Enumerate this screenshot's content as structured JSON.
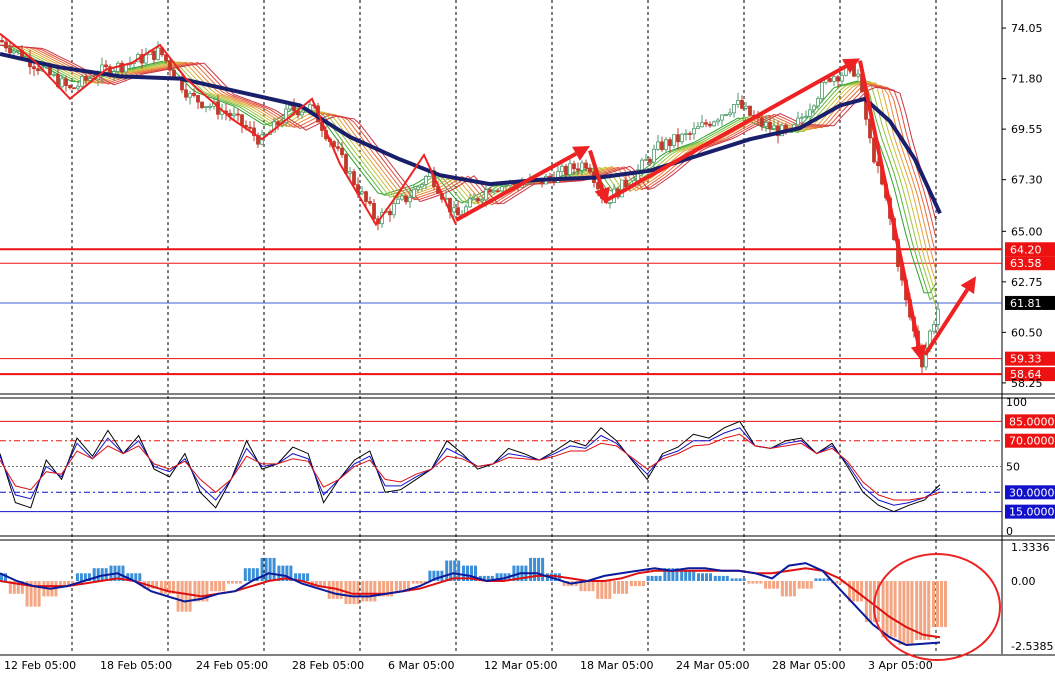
{
  "colors": {
    "background": "#ffffff",
    "grid": "#000000",
    "candle_up": "#4e9a6c",
    "candle_down": "#c0392b",
    "slow_ma": "#1a1f6b",
    "arrow": "#ee2222",
    "level": "#ee1111",
    "price_line": "#3c5fd6",
    "stoch_main": "#000000",
    "stoch_signal_1": "#1111cc",
    "stoch_signal_2": "#dd1111",
    "macd_pos": "#3a8fd8",
    "macd_neg": "#f4a582",
    "macd_line": "#0a1a9c",
    "signal_line": "#dd1111",
    "circle": "#ee2222"
  },
  "chart_data": [
    {
      "type": "candlestick",
      "panel": "price",
      "x_tick_labels": [
        "12 Feb 05:00",
        "18 Feb 05:00",
        "24 Feb 05:00",
        "28 Feb 05:00",
        "6 Mar 05:00",
        "12 Mar 05:00",
        "18 Mar 05:00",
        "24 Mar 05:00",
        "28 Mar 05:00",
        "3 Apr 05:00"
      ],
      "y_ticks": [
        "74.05",
        "71.80",
        "69.55",
        "67.30",
        "65.00",
        "62.75",
        "60.50",
        "58.25"
      ],
      "ylim": [
        57.8,
        75.3
      ],
      "current_price": "61.81",
      "levels": [
        {
          "label": "64.20",
          "value": 64.2
        },
        {
          "label": "63.58",
          "value": 63.58
        },
        {
          "label": "59.33",
          "value": 59.33
        },
        {
          "label": "58.64",
          "value": 58.64
        }
      ],
      "price_path": [
        [
          0,
          73.5
        ],
        [
          30,
          72.6
        ],
        [
          70,
          71.3
        ],
        [
          100,
          72.1
        ],
        [
          130,
          72.5
        ],
        [
          160,
          73.0
        ],
        [
          190,
          71.0
        ],
        [
          230,
          70.2
        ],
        [
          262,
          69.0
        ],
        [
          290,
          70.4
        ],
        [
          312,
          70.5
        ],
        [
          340,
          68.3
        ],
        [
          376,
          65.5
        ],
        [
          410,
          66.6
        ],
        [
          430,
          67.6
        ],
        [
          456,
          65.6
        ],
        [
          490,
          67.0
        ],
        [
          540,
          67.2
        ],
        [
          588,
          68.1
        ],
        [
          605,
          66.3
        ],
        [
          630,
          67.3
        ],
        [
          660,
          68.8
        ],
        [
          690,
          69.3
        ],
        [
          736,
          70.7
        ],
        [
          760,
          69.8
        ],
        [
          790,
          69.3
        ],
        [
          808,
          70.5
        ],
        [
          830,
          71.9
        ],
        [
          857,
          72.2
        ],
        [
          870,
          69.0
        ],
        [
          888,
          66.0
        ],
        [
          905,
          62.0
        ],
        [
          922,
          59.2
        ],
        [
          932,
          60.8
        ],
        [
          940,
          61.8
        ]
      ],
      "slow_ma_path": [
        [
          0,
          72.9
        ],
        [
          60,
          72.3
        ],
        [
          120,
          71.9
        ],
        [
          180,
          71.8
        ],
        [
          240,
          71.2
        ],
        [
          300,
          70.6
        ],
        [
          350,
          69.2
        ],
        [
          400,
          68.2
        ],
        [
          440,
          67.5
        ],
        [
          490,
          67.1
        ],
        [
          540,
          67.3
        ],
        [
          600,
          67.4
        ],
        [
          650,
          67.7
        ],
        [
          700,
          68.4
        ],
        [
          750,
          69.1
        ],
        [
          800,
          69.6
        ],
        [
          840,
          70.6
        ],
        [
          865,
          70.9
        ],
        [
          890,
          69.9
        ],
        [
          915,
          68.2
        ],
        [
          940,
          65.8
        ]
      ],
      "zigzag": [
        [
          0,
          73.8
        ],
        [
          34,
          72.6
        ],
        [
          70,
          70.9
        ],
        [
          106,
          72.2
        ],
        [
          132,
          72.5
        ],
        [
          160,
          73.3
        ],
        [
          186,
          71.8
        ],
        [
          232,
          70.0
        ],
        [
          262,
          69.1
        ],
        [
          312,
          70.9
        ],
        [
          340,
          68.0
        ],
        [
          376,
          65.3
        ],
        [
          400,
          66.8
        ],
        [
          424,
          68.4
        ],
        [
          456,
          65.3
        ]
      ],
      "arrows": [
        {
          "from": [
            456,
            65.5
          ],
          "to": [
            590,
            68.8
          ]
        },
        {
          "from": [
            590,
            68.6
          ],
          "to": [
            607,
            66.2
          ]
        },
        {
          "from": [
            607,
            66.4
          ],
          "to": [
            860,
            72.7
          ]
        },
        {
          "from": [
            860,
            72.6
          ],
          "to": [
            922,
            59.2
          ]
        },
        {
          "from": [
            925,
            59.5
          ],
          "to": [
            976,
            63.0
          ]
        }
      ]
    },
    {
      "type": "line",
      "panel": "stochastic",
      "y_ticks": [
        "100",
        "50",
        "0"
      ],
      "ylim": [
        0,
        100
      ],
      "levels": [
        {
          "label": "85.0000",
          "value": 85
        },
        {
          "label": "70.0000",
          "value": 70
        },
        {
          "label": "30.0000",
          "value": 30
        },
        {
          "label": "15.0000",
          "value": 15
        }
      ],
      "series": [
        {
          "values": [
            60,
            22,
            18,
            55,
            40,
            72,
            58,
            78,
            60,
            74,
            48,
            42,
            60,
            30,
            18,
            40,
            70,
            48,
            52,
            65,
            60,
            22,
            40,
            55,
            62,
            30,
            32,
            40,
            48,
            70,
            60,
            48,
            52,
            64,
            60,
            55,
            62,
            70,
            66,
            80,
            70,
            55,
            40,
            60,
            65,
            75,
            72,
            80,
            85,
            66,
            64,
            70,
            72,
            60,
            68,
            50,
            30,
            20,
            15,
            20,
            24,
            36
          ]
        },
        {
          "values": [
            58,
            28,
            25,
            50,
            42,
            68,
            56,
            72,
            60,
            70,
            50,
            46,
            56,
            35,
            24,
            40,
            64,
            50,
            52,
            60,
            56,
            28,
            40,
            52,
            58,
            35,
            35,
            42,
            48,
            64,
            58,
            50,
            52,
            60,
            58,
            55,
            60,
            66,
            64,
            74,
            68,
            56,
            44,
            58,
            62,
            70,
            70,
            76,
            80,
            66,
            64,
            68,
            70,
            60,
            66,
            52,
            34,
            24,
            20,
            22,
            26,
            33
          ]
        },
        {
          "values": [
            55,
            35,
            32,
            46,
            44,
            62,
            56,
            66,
            60,
            66,
            52,
            48,
            54,
            40,
            30,
            40,
            58,
            52,
            52,
            56,
            54,
            34,
            40,
            50,
            55,
            40,
            38,
            44,
            48,
            58,
            56,
            50,
            52,
            57,
            56,
            55,
            58,
            62,
            62,
            68,
            66,
            57,
            48,
            56,
            60,
            66,
            67,
            72,
            75,
            66,
            64,
            66,
            68,
            60,
            64,
            54,
            38,
            28,
            24,
            24,
            26,
            30
          ]
        }
      ]
    },
    {
      "type": "bar",
      "panel": "macd",
      "y_ticks": [
        "1.3336",
        "0.00",
        "-2.5385"
      ],
      "ylim": [
        -2.85,
        1.6
      ],
      "histogram": [
        0.3,
        -0.5,
        -1.0,
        -0.6,
        -0.2,
        0.3,
        0.5,
        0.6,
        0.3,
        -0.3,
        -0.5,
        -1.2,
        -0.8,
        -0.4,
        -0.1,
        0.5,
        0.9,
        0.6,
        0.3,
        -0.2,
        -0.7,
        -0.9,
        -0.8,
        -0.6,
        -0.4,
        -0.1,
        0.4,
        0.8,
        0.6,
        0.2,
        0.3,
        0.6,
        0.9,
        0.3,
        -0.2,
        -0.4,
        -0.7,
        -0.5,
        -0.2,
        0.2,
        0.5,
        0.4,
        0.3,
        0.2,
        0.1,
        -0.1,
        -0.3,
        -0.6,
        -0.3,
        0.1,
        -0.1,
        -0.8,
        -1.6,
        -2.2,
        -2.5,
        -2.3,
        -1.8
      ],
      "macd_line": [
        0.3,
        0.0,
        -0.2,
        -0.3,
        -0.2,
        0.0,
        0.2,
        0.3,
        0.0,
        -0.4,
        -0.6,
        -0.8,
        -0.7,
        -0.5,
        -0.4,
        0.0,
        0.3,
        0.2,
        -0.1,
        -0.3,
        -0.5,
        -0.6,
        -0.6,
        -0.5,
        -0.4,
        -0.2,
        0.1,
        0.3,
        0.2,
        0.0,
        0.1,
        0.3,
        0.3,
        0.1,
        -0.1,
        0.0,
        0.2,
        0.3,
        0.4,
        0.5,
        0.4,
        0.5,
        0.5,
        0.4,
        0.4,
        0.3,
        0.1,
        0.6,
        0.7,
        0.4,
        -0.3,
        -1.0,
        -1.7,
        -2.2,
        -2.5,
        -2.45,
        -2.4
      ],
      "signal_line": [
        0.0,
        -0.1,
        -0.2,
        -0.2,
        -0.2,
        -0.1,
        0.0,
        0.1,
        0.0,
        -0.2,
        -0.4,
        -0.5,
        -0.6,
        -0.5,
        -0.4,
        -0.2,
        0.0,
        0.1,
        0.0,
        -0.2,
        -0.3,
        -0.5,
        -0.5,
        -0.5,
        -0.4,
        -0.3,
        -0.1,
        0.1,
        0.1,
        0.0,
        0.0,
        0.1,
        0.2,
        0.2,
        0.1,
        0.0,
        0.0,
        0.1,
        0.3,
        0.4,
        0.4,
        0.4,
        0.4,
        0.4,
        0.4,
        0.3,
        0.3,
        0.4,
        0.5,
        0.4,
        0.1,
        -0.4,
        -0.9,
        -1.4,
        -1.8,
        -2.1,
        -2.2
      ]
    }
  ]
}
